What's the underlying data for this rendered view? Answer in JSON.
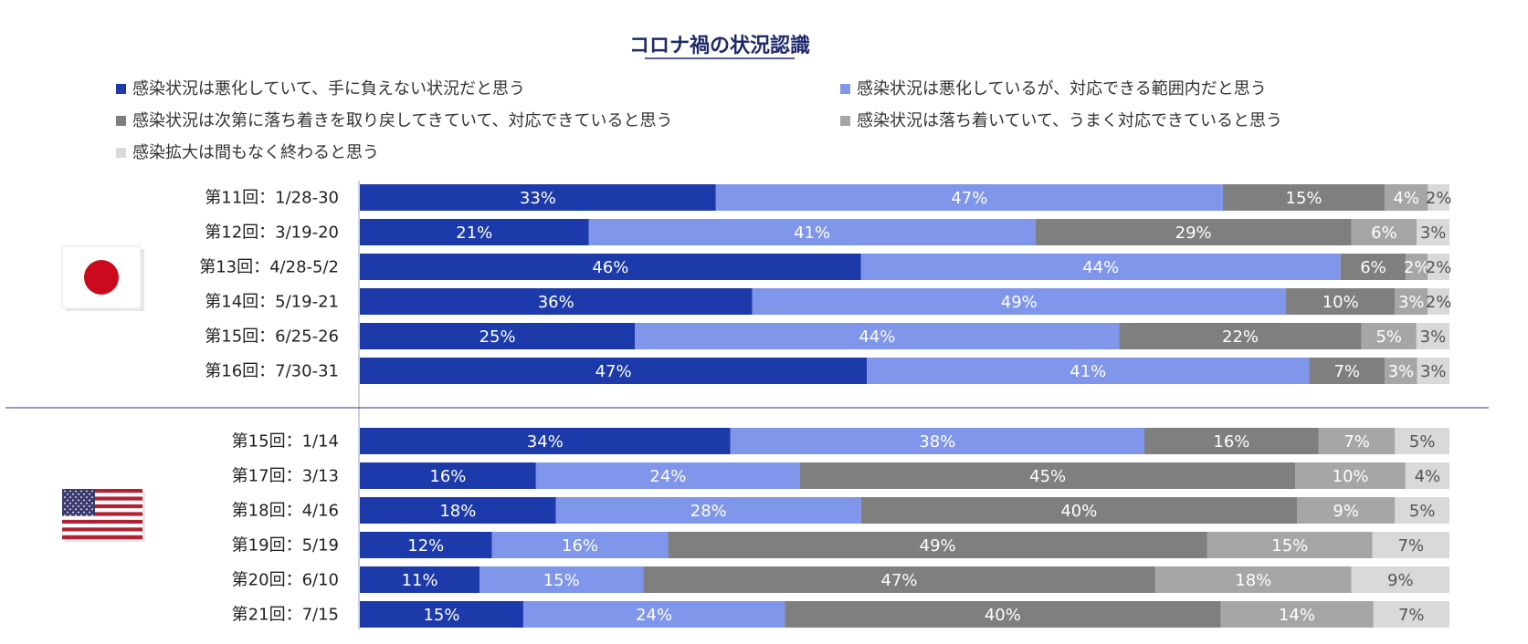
{
  "chart_data": {
    "type": "bar",
    "orientation": "horizontal",
    "stacked": true,
    "percent": true,
    "title": "コロナ禍の状況認識",
    "legend_position": "top",
    "colors": [
      "#1c3aa9",
      "#7f96ea",
      "#7f7f7f",
      "#a6a6a6",
      "#d9d9d9"
    ],
    "series": [
      {
        "name": "感染状況は悪化していて、手に負えない状況だと思う"
      },
      {
        "name": "感染状況は悪化しているが、対応できる範囲内だと思う"
      },
      {
        "name": "感染状況は次第に落ち着きを取り戻してきていて、対応できていると思う"
      },
      {
        "name": "感染状況は落ち着いていて、うまく対応できていると思う"
      },
      {
        "name": "感染拡大は間もなく終わると思う"
      }
    ],
    "groups": [
      {
        "flag": "japan-flag-icon",
        "rows": [
          {
            "label": "第11回：1/28-30",
            "values": [
              33,
              47,
              15,
              4,
              2
            ]
          },
          {
            "label": "第12回：3/19-20",
            "values": [
              21,
              41,
              29,
              6,
              3
            ]
          },
          {
            "label": "第13回：4/28-5/2",
            "values": [
              46,
              44,
              6,
              2,
              2
            ]
          },
          {
            "label": "第14回：5/19-21",
            "values": [
              36,
              49,
              10,
              3,
              2
            ]
          },
          {
            "label": "第15回：6/25-26",
            "values": [
              25,
              44,
              22,
              5,
              3
            ]
          },
          {
            "label": "第16回：7/30-31",
            "values": [
              47,
              41,
              7,
              3,
              3
            ]
          }
        ]
      },
      {
        "flag": "usa-flag-icon",
        "rows": [
          {
            "label": "第15回：1/14",
            "values": [
              34,
              38,
              16,
              7,
              5
            ]
          },
          {
            "label": "第17回：3/13",
            "values": [
              16,
              24,
              45,
              10,
              4
            ]
          },
          {
            "label": "第18回：4/16",
            "values": [
              18,
              28,
              40,
              9,
              5
            ]
          },
          {
            "label": "第19回：5/19",
            "values": [
              12,
              16,
              49,
              15,
              7
            ]
          },
          {
            "label": "第20回：6/10",
            "values": [
              11,
              15,
              47,
              18,
              9
            ]
          },
          {
            "label": "第21回：7/15",
            "values": [
              15,
              24,
              40,
              14,
              7
            ]
          }
        ]
      }
    ]
  }
}
